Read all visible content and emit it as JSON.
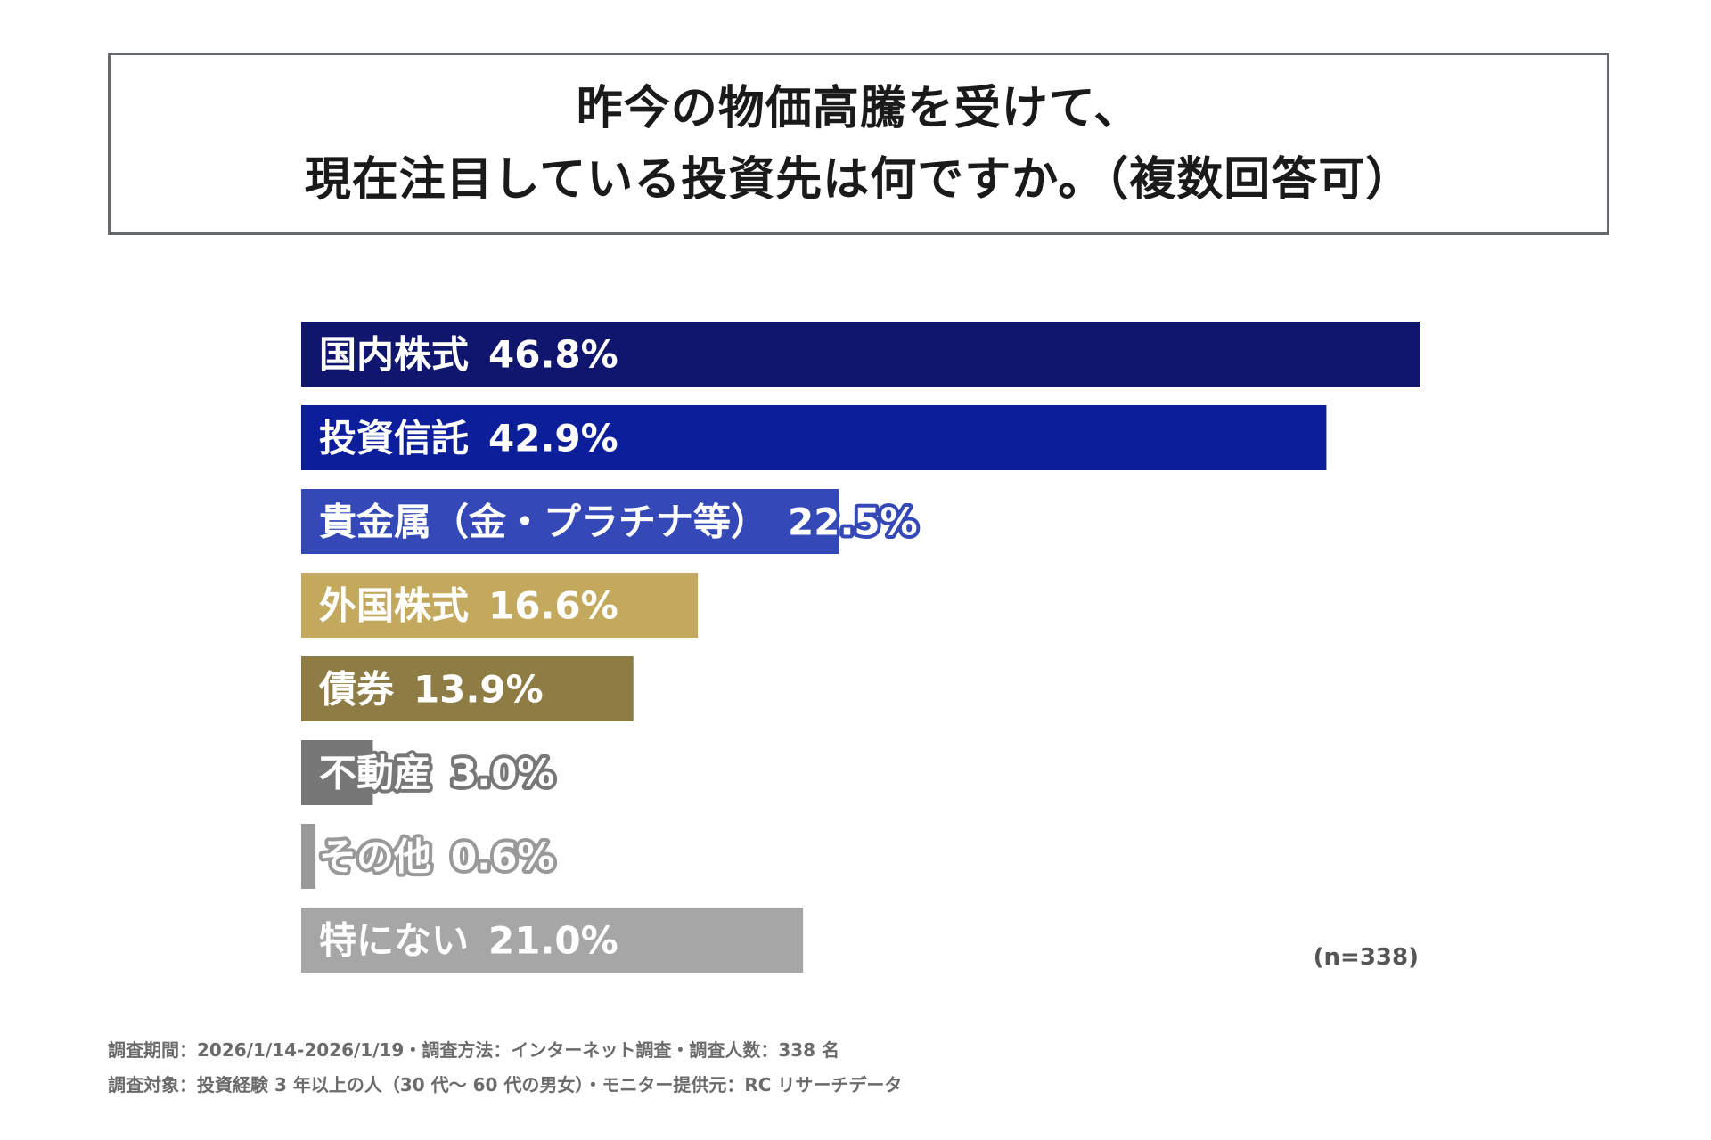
{
  "title": {
    "line1": "昨今の物価高騰を受けて、",
    "line2": "現在注目している投資先は何ですか。（複数回答可）"
  },
  "chart_data": {
    "type": "bar",
    "orientation": "horizontal",
    "categories": [
      "国内株式",
      "投資信託",
      "貴金属（金・プラチナ等）",
      "外国株式",
      "債券",
      "不動産",
      "その他",
      "特にない"
    ],
    "values": [
      46.8,
      42.9,
      22.5,
      16.6,
      13.9,
      3.0,
      0.6,
      21.0
    ],
    "value_labels": [
      "46.8%",
      "42.9%",
      "22.5%",
      "16.6%",
      "13.9%",
      "3.0%",
      "0.6%",
      "21.0%"
    ],
    "unit": "%",
    "colors": [
      "#10166e",
      "#0c1e99",
      "#3448b7",
      "#c3a95e",
      "#8e7c45",
      "#777777",
      "#999999",
      "#a6a6a6"
    ],
    "label_outline_colors": [
      "",
      "",
      "#3448b7",
      "",
      "",
      "#777777",
      "#999999",
      ""
    ],
    "xlim": [
      0,
      46.8
    ],
    "grid": false,
    "legend": "none"
  },
  "sample_size": "(n=338)",
  "footnotes": {
    "line1": "調査期間：2026/1/14-2026/1/19・調査方法：インターネット調査・調査人数：338 名",
    "line2": "調査対象：投資経験 3 年以上の人（30 代〜 60 代の男女）・モニター提供元：RC リサーチデータ"
  }
}
